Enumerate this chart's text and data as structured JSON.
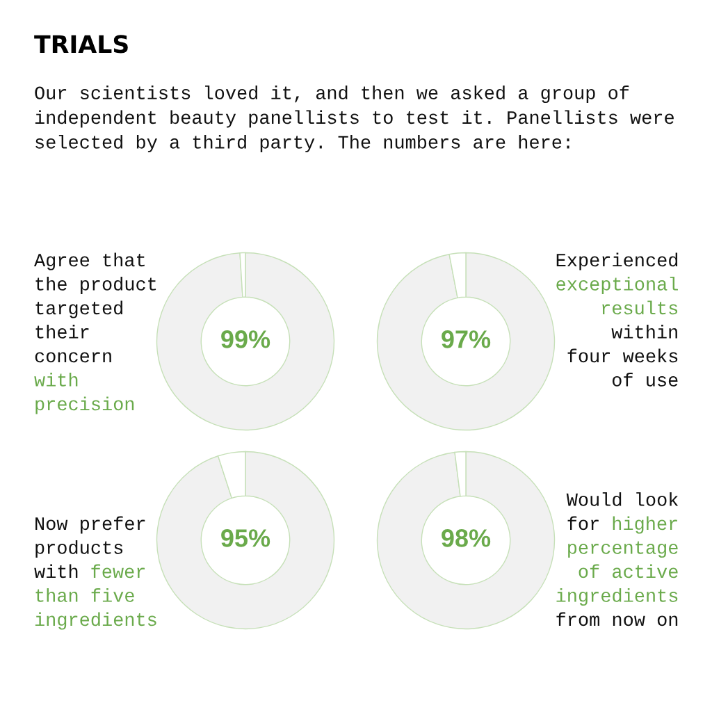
{
  "chart_data": [
    {
      "type": "other",
      "title": "TRIALS",
      "subtitle": "Our scientists loved it, and then we asked a group of\nindependent beauty panellists to test it. Panellists were\nselected by a third party. The numbers are here:"
    },
    {
      "type": "donut",
      "categories": [
        null,
        null
      ],
      "values": [
        99,
        1
      ],
      "colors": [
        "#f1f1f1",
        "#ffffff"
      ],
      "value_labels": [
        "99%",
        null
      ],
      "annotations": [
        "Agree that\nthe product\ntargeted\ntheir\nconcern",
        "\nwith\nprecision"
      ]
    },
    {
      "type": "donut",
      "categories": [
        null,
        null
      ],
      "values": [
        97,
        3
      ],
      "colors": [
        "#f1f1f1",
        "#ffffff"
      ],
      "value_labels": [
        "97%",
        null
      ],
      "annotations": [
        "Experienced",
        "\nexceptional\nresults",
        "\nwithin\nfour weeks\nof use"
      ]
    },
    {
      "type": "donut",
      "categories": [
        null,
        null
      ],
      "values": [
        95,
        5
      ],
      "colors": [
        "#f1f1f1",
        "#ffffff"
      ],
      "value_labels": [
        "95%",
        null
      ],
      "annotations": [
        "Now prefer\nproducts\nwith",
        " fewer\nthan five\ningredients"
      ]
    },
    {
      "type": "donut",
      "categories": [
        null,
        null
      ],
      "values": [
        98,
        2
      ],
      "colors": [
        "#f1f1f1",
        "#ffffff"
      ],
      "value_labels": [
        "98%",
        null
      ],
      "annotations": [
        "Would look\nfor",
        " higher\npercentage\nof active\ningredients",
        "\nfrom now on"
      ]
    }
  ]
}
